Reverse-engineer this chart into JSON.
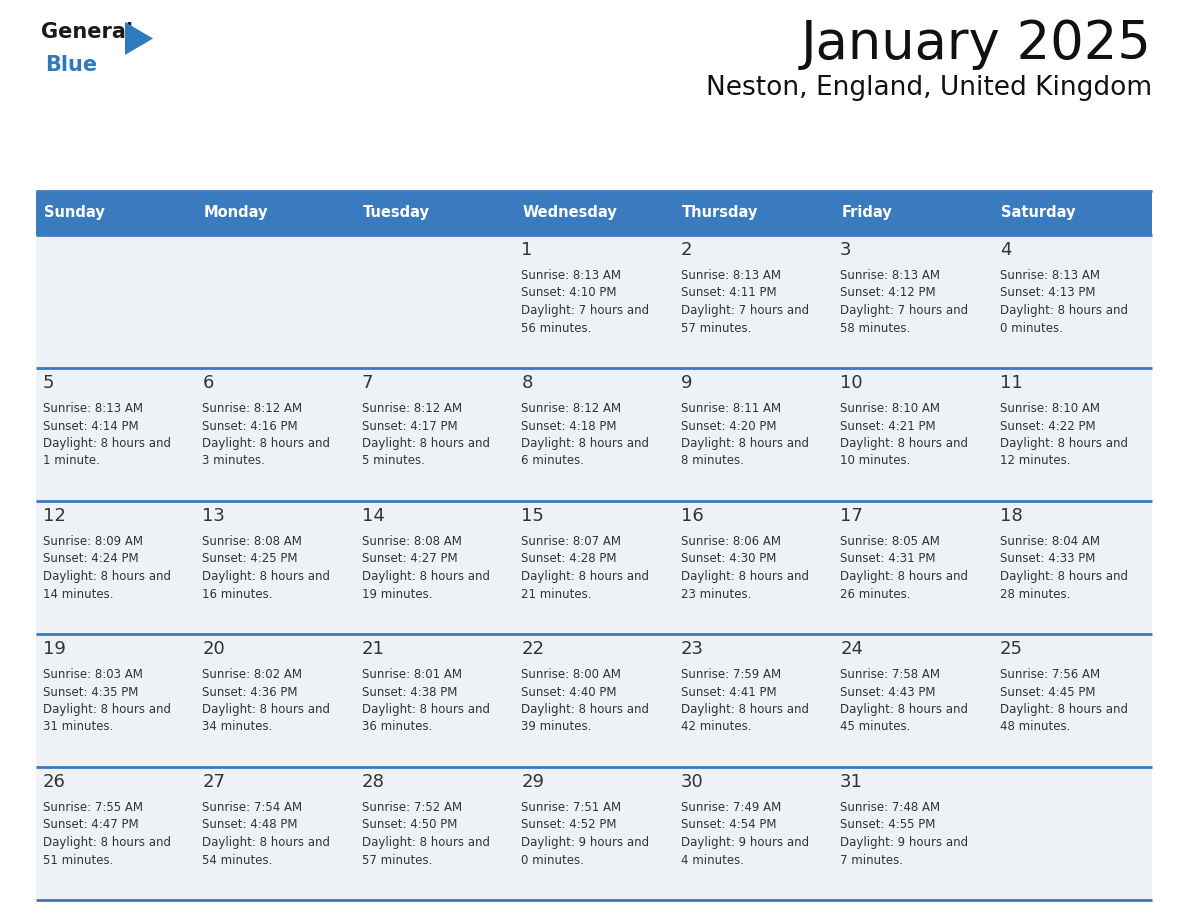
{
  "title": "January 2025",
  "subtitle": "Neston, England, United Kingdom",
  "header_color": "#3a7abf",
  "header_text_color": "#ffffff",
  "cell_bg_color": "#eef2f7",
  "border_color": "#3a7abf",
  "text_color": "#333333",
  "day_names": [
    "Sunday",
    "Monday",
    "Tuesday",
    "Wednesday",
    "Thursday",
    "Friday",
    "Saturday"
  ],
  "days": [
    {
      "day": 1,
      "col": 3,
      "row": 0,
      "sunrise": "8:13 AM",
      "sunset": "4:10 PM",
      "daylight": "7 hours and 56 minutes."
    },
    {
      "day": 2,
      "col": 4,
      "row": 0,
      "sunrise": "8:13 AM",
      "sunset": "4:11 PM",
      "daylight": "7 hours and 57 minutes."
    },
    {
      "day": 3,
      "col": 5,
      "row": 0,
      "sunrise": "8:13 AM",
      "sunset": "4:12 PM",
      "daylight": "7 hours and 58 minutes."
    },
    {
      "day": 4,
      "col": 6,
      "row": 0,
      "sunrise": "8:13 AM",
      "sunset": "4:13 PM",
      "daylight": "8 hours and 0 minutes."
    },
    {
      "day": 5,
      "col": 0,
      "row": 1,
      "sunrise": "8:13 AM",
      "sunset": "4:14 PM",
      "daylight": "8 hours and 1 minute."
    },
    {
      "day": 6,
      "col": 1,
      "row": 1,
      "sunrise": "8:12 AM",
      "sunset": "4:16 PM",
      "daylight": "8 hours and 3 minutes."
    },
    {
      "day": 7,
      "col": 2,
      "row": 1,
      "sunrise": "8:12 AM",
      "sunset": "4:17 PM",
      "daylight": "8 hours and 5 minutes."
    },
    {
      "day": 8,
      "col": 3,
      "row": 1,
      "sunrise": "8:12 AM",
      "sunset": "4:18 PM",
      "daylight": "8 hours and 6 minutes."
    },
    {
      "day": 9,
      "col": 4,
      "row": 1,
      "sunrise": "8:11 AM",
      "sunset": "4:20 PM",
      "daylight": "8 hours and 8 minutes."
    },
    {
      "day": 10,
      "col": 5,
      "row": 1,
      "sunrise": "8:10 AM",
      "sunset": "4:21 PM",
      "daylight": "8 hours and 10 minutes."
    },
    {
      "day": 11,
      "col": 6,
      "row": 1,
      "sunrise": "8:10 AM",
      "sunset": "4:22 PM",
      "daylight": "8 hours and 12 minutes."
    },
    {
      "day": 12,
      "col": 0,
      "row": 2,
      "sunrise": "8:09 AM",
      "sunset": "4:24 PM",
      "daylight": "8 hours and 14 minutes."
    },
    {
      "day": 13,
      "col": 1,
      "row": 2,
      "sunrise": "8:08 AM",
      "sunset": "4:25 PM",
      "daylight": "8 hours and 16 minutes."
    },
    {
      "day": 14,
      "col": 2,
      "row": 2,
      "sunrise": "8:08 AM",
      "sunset": "4:27 PM",
      "daylight": "8 hours and 19 minutes."
    },
    {
      "day": 15,
      "col": 3,
      "row": 2,
      "sunrise": "8:07 AM",
      "sunset": "4:28 PM",
      "daylight": "8 hours and 21 minutes."
    },
    {
      "day": 16,
      "col": 4,
      "row": 2,
      "sunrise": "8:06 AM",
      "sunset": "4:30 PM",
      "daylight": "8 hours and 23 minutes."
    },
    {
      "day": 17,
      "col": 5,
      "row": 2,
      "sunrise": "8:05 AM",
      "sunset": "4:31 PM",
      "daylight": "8 hours and 26 minutes."
    },
    {
      "day": 18,
      "col": 6,
      "row": 2,
      "sunrise": "8:04 AM",
      "sunset": "4:33 PM",
      "daylight": "8 hours and 28 minutes."
    },
    {
      "day": 19,
      "col": 0,
      "row": 3,
      "sunrise": "8:03 AM",
      "sunset": "4:35 PM",
      "daylight": "8 hours and 31 minutes."
    },
    {
      "day": 20,
      "col": 1,
      "row": 3,
      "sunrise": "8:02 AM",
      "sunset": "4:36 PM",
      "daylight": "8 hours and 34 minutes."
    },
    {
      "day": 21,
      "col": 2,
      "row": 3,
      "sunrise": "8:01 AM",
      "sunset": "4:38 PM",
      "daylight": "8 hours and 36 minutes."
    },
    {
      "day": 22,
      "col": 3,
      "row": 3,
      "sunrise": "8:00 AM",
      "sunset": "4:40 PM",
      "daylight": "8 hours and 39 minutes."
    },
    {
      "day": 23,
      "col": 4,
      "row": 3,
      "sunrise": "7:59 AM",
      "sunset": "4:41 PM",
      "daylight": "8 hours and 42 minutes."
    },
    {
      "day": 24,
      "col": 5,
      "row": 3,
      "sunrise": "7:58 AM",
      "sunset": "4:43 PM",
      "daylight": "8 hours and 45 minutes."
    },
    {
      "day": 25,
      "col": 6,
      "row": 3,
      "sunrise": "7:56 AM",
      "sunset": "4:45 PM",
      "daylight": "8 hours and 48 minutes."
    },
    {
      "day": 26,
      "col": 0,
      "row": 4,
      "sunrise": "7:55 AM",
      "sunset": "4:47 PM",
      "daylight": "8 hours and 51 minutes."
    },
    {
      "day": 27,
      "col": 1,
      "row": 4,
      "sunrise": "7:54 AM",
      "sunset": "4:48 PM",
      "daylight": "8 hours and 54 minutes."
    },
    {
      "day": 28,
      "col": 2,
      "row": 4,
      "sunrise": "7:52 AM",
      "sunset": "4:50 PM",
      "daylight": "8 hours and 57 minutes."
    },
    {
      "day": 29,
      "col": 3,
      "row": 4,
      "sunrise": "7:51 AM",
      "sunset": "4:52 PM",
      "daylight": "9 hours and 0 minutes."
    },
    {
      "day": 30,
      "col": 4,
      "row": 4,
      "sunrise": "7:49 AM",
      "sunset": "4:54 PM",
      "daylight": "9 hours and 4 minutes."
    },
    {
      "day": 31,
      "col": 5,
      "row": 4,
      "sunrise": "7:48 AM",
      "sunset": "4:55 PM",
      "daylight": "9 hours and 7 minutes."
    }
  ],
  "logo_color_general": "#1a1a1a",
  "logo_color_blue": "#2e7abf",
  "logo_triangle_color": "#2e7abf"
}
